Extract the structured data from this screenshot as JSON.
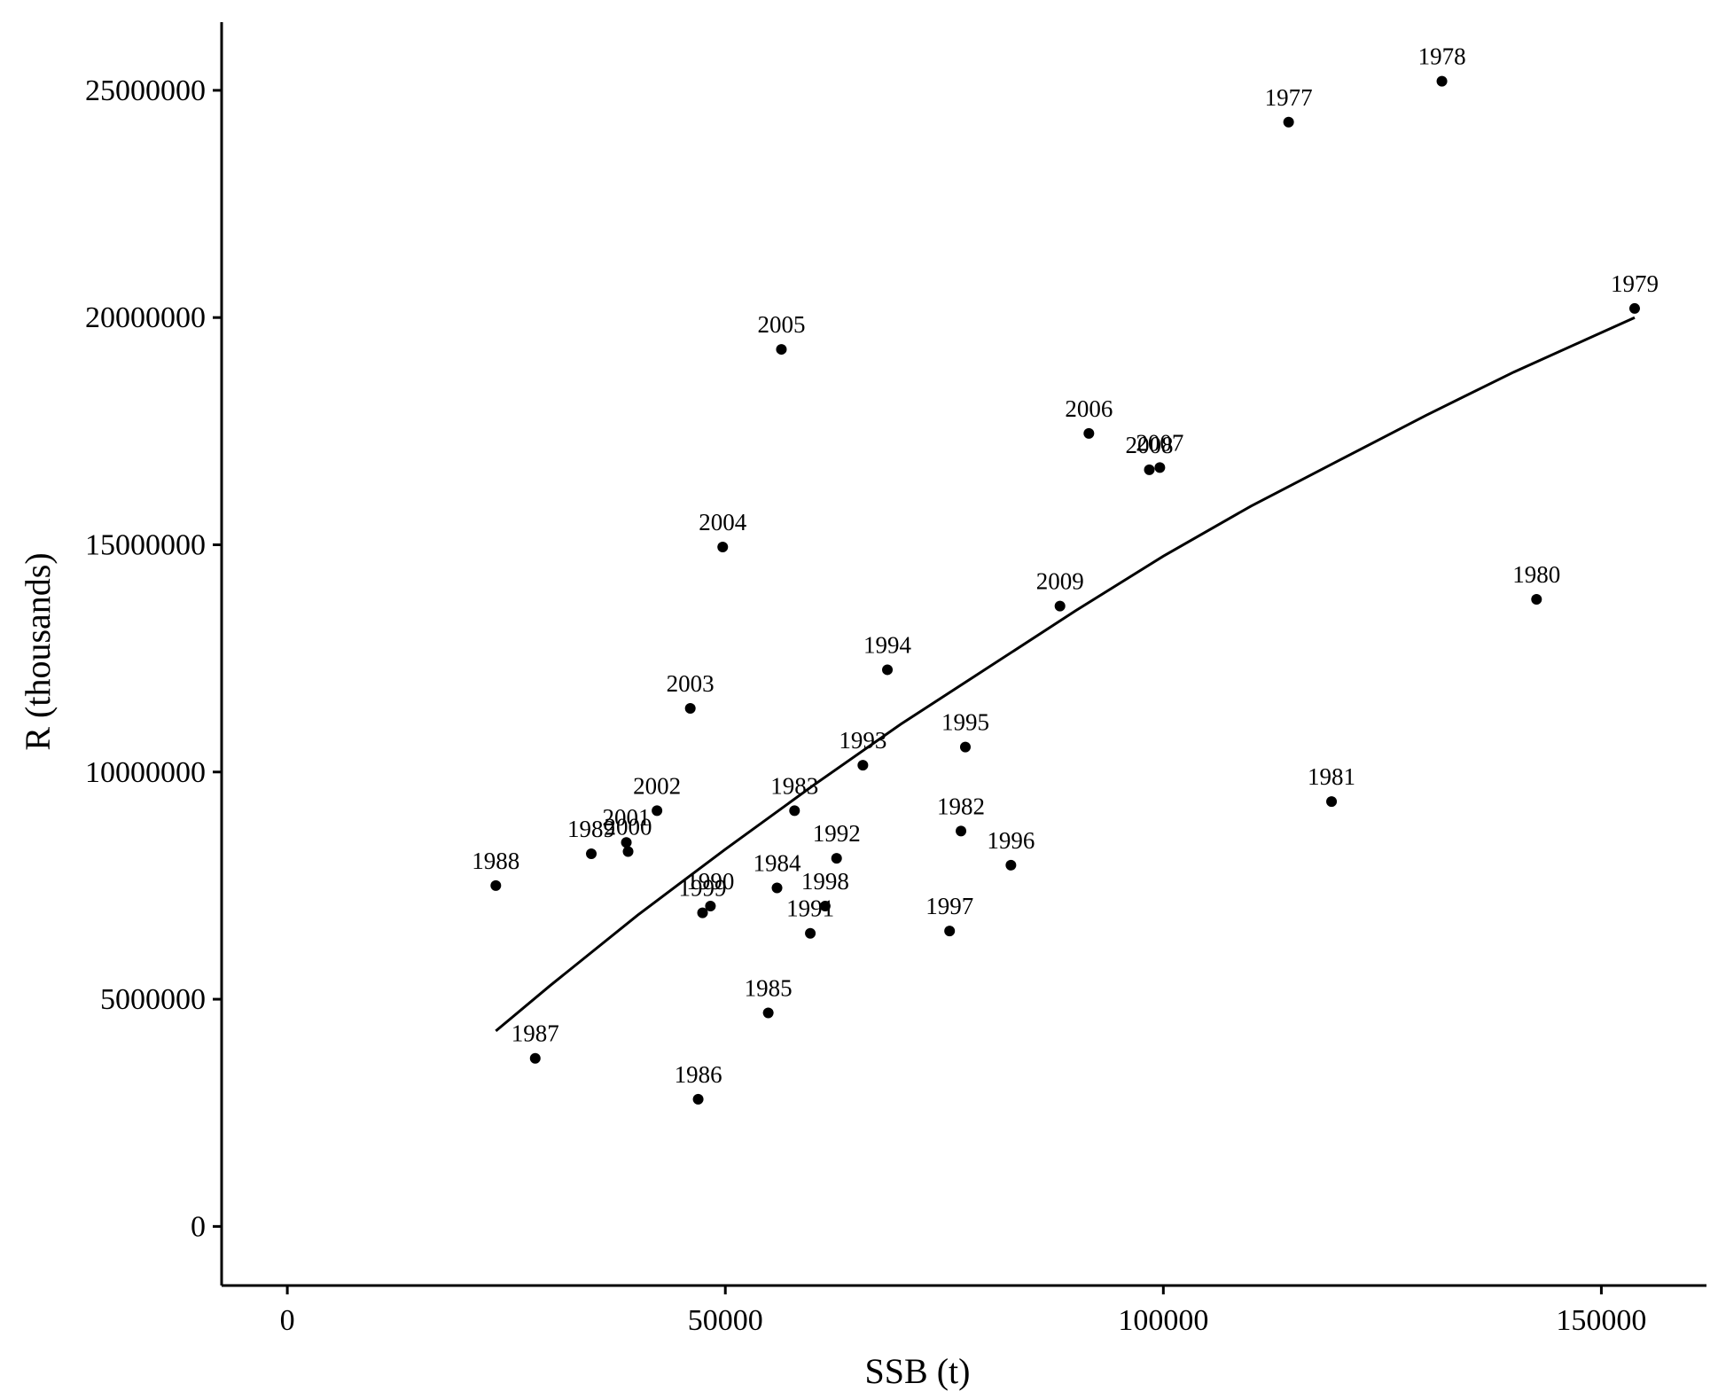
{
  "chart_data": {
    "type": "scatter",
    "title": "",
    "xlabel": "SSB (t)",
    "ylabel": "R (thousands)",
    "xlim": [
      -7500,
      162000
    ],
    "ylim": [
      -1300000,
      26500000
    ],
    "x_ticks": [
      0,
      50000,
      100000,
      150000
    ],
    "x_tick_labels": [
      "0",
      "50000",
      "100000",
      "150000"
    ],
    "y_ticks": [
      0,
      5000000,
      10000000,
      15000000,
      20000000,
      25000000
    ],
    "y_tick_labels": [
      "0",
      "5000000",
      "10000000",
      "15000000",
      "20000000",
      "25000000"
    ],
    "grid": false,
    "legend": "none",
    "point_color": "#000000",
    "points": [
      {
        "label": "1977",
        "x": 114300,
        "y": 24300000
      },
      {
        "label": "1978",
        "x": 131800,
        "y": 25200000
      },
      {
        "label": "1979",
        "x": 153800,
        "y": 20200000
      },
      {
        "label": "1980",
        "x": 142600,
        "y": 13800000
      },
      {
        "label": "1981",
        "x": 119200,
        "y": 9350000
      },
      {
        "label": "1982",
        "x": 76900,
        "y": 8700000
      },
      {
        "label": "1983",
        "x": 57900,
        "y": 9150000
      },
      {
        "label": "1984",
        "x": 55900,
        "y": 7450000
      },
      {
        "label": "1985",
        "x": 54900,
        "y": 4700000
      },
      {
        "label": "1986",
        "x": 46900,
        "y": 2800000
      },
      {
        "label": "1987",
        "x": 28300,
        "y": 3700000
      },
      {
        "label": "1988",
        "x": 23800,
        "y": 7500000
      },
      {
        "label": "1989",
        "x": 34700,
        "y": 8200000
      },
      {
        "label": "1990",
        "x": 48300,
        "y": 7050000
      },
      {
        "label": "1991",
        "x": 59700,
        "y": 6450000
      },
      {
        "label": "1992",
        "x": 62700,
        "y": 8100000
      },
      {
        "label": "1993",
        "x": 65700,
        "y": 10150000
      },
      {
        "label": "1994",
        "x": 68500,
        "y": 12250000
      },
      {
        "label": "1995",
        "x": 77400,
        "y": 10550000
      },
      {
        "label": "1996",
        "x": 82600,
        "y": 7950000
      },
      {
        "label": "1997",
        "x": 75600,
        "y": 6500000
      },
      {
        "label": "1998",
        "x": 61400,
        "y": 7050000
      },
      {
        "label": "1999",
        "x": 47400,
        "y": 6900000
      },
      {
        "label": "2000",
        "x": 38900,
        "y": 8250000
      },
      {
        "label": "2001",
        "x": 38700,
        "y": 8450000
      },
      {
        "label": "2002",
        "x": 42200,
        "y": 9150000
      },
      {
        "label": "2003",
        "x": 46000,
        "y": 11400000
      },
      {
        "label": "2004",
        "x": 49700,
        "y": 14950000
      },
      {
        "label": "2005",
        "x": 56400,
        "y": 19300000
      },
      {
        "label": "2006",
        "x": 91500,
        "y": 17450000
      },
      {
        "label": "2007",
        "x": 99600,
        "y": 16700000
      },
      {
        "label": "2008",
        "x": 98400,
        "y": 16650000
      },
      {
        "label": "2009",
        "x": 88200,
        "y": 13650000
      }
    ],
    "fit_curve": {
      "x": [
        23800,
        30000,
        40000,
        50000,
        60000,
        70000,
        80000,
        90000,
        100000,
        110000,
        120000,
        130000,
        140000,
        153800
      ],
      "y": [
        4300000,
        5300000,
        6850000,
        8300000,
        9700000,
        11050000,
        12300000,
        13550000,
        14750000,
        15850000,
        16850000,
        17850000,
        18800000,
        20000000
      ]
    }
  }
}
